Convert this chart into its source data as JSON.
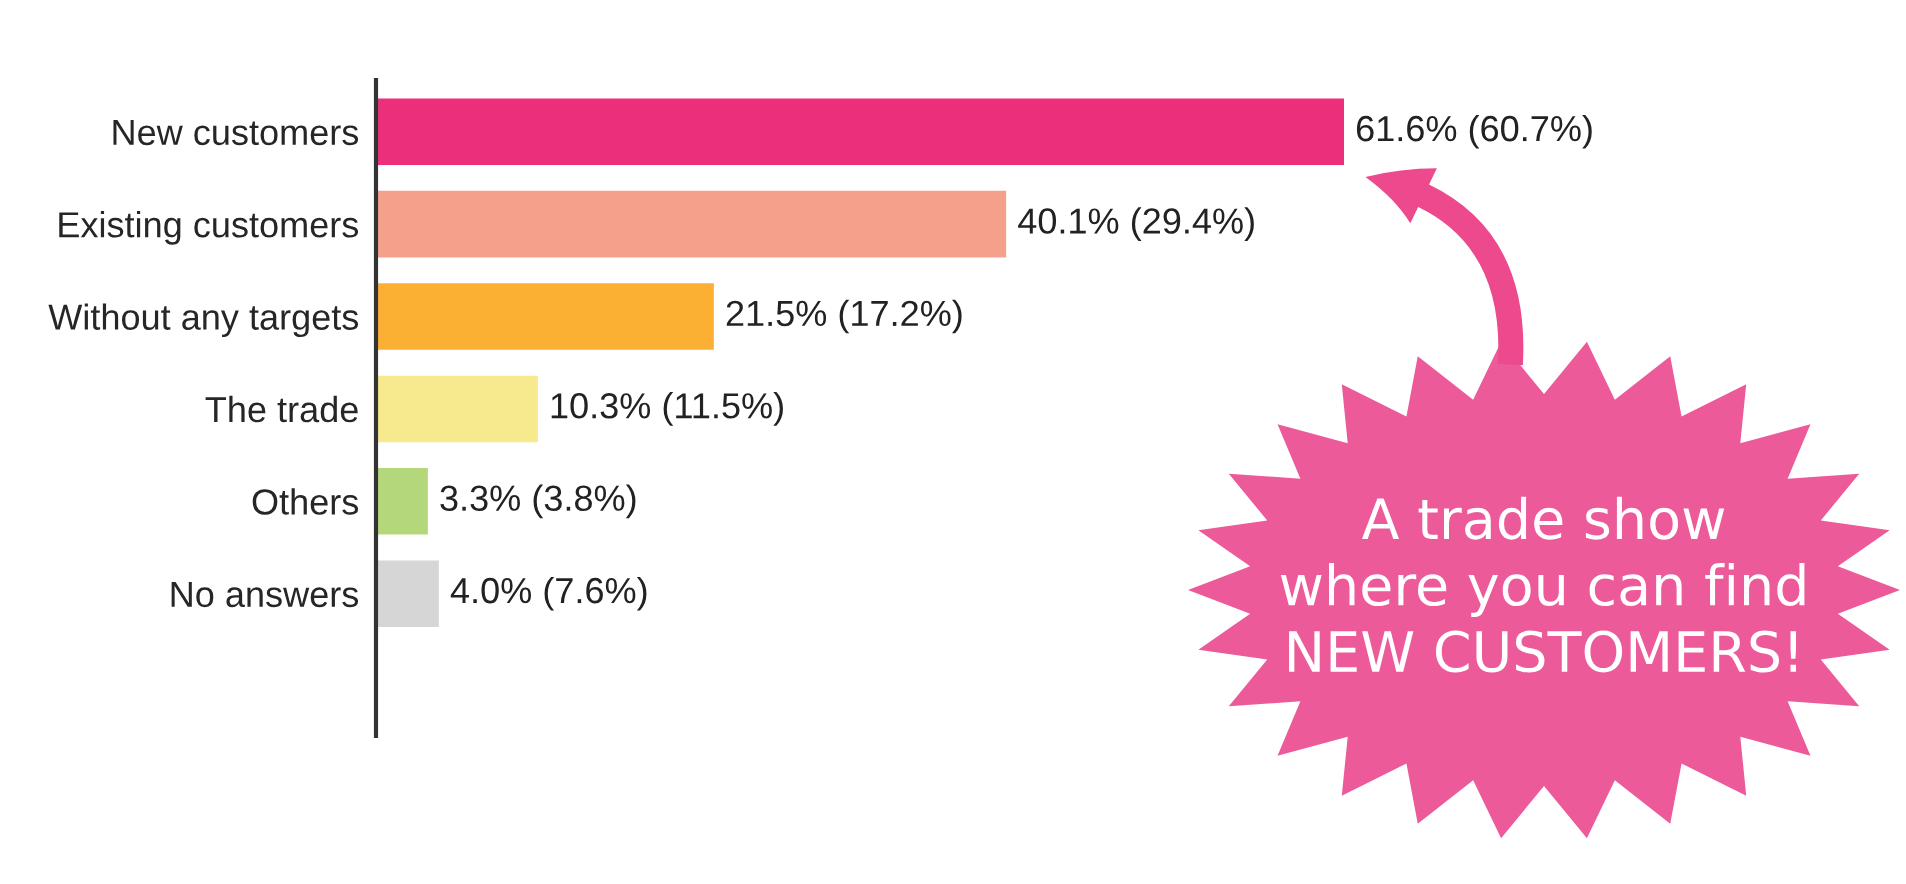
{
  "chart_data": {
    "type": "bar",
    "orientation": "horizontal",
    "categories": [
      "New customers",
      "Existing customers",
      "Without any targets",
      "The trade",
      "Others",
      "No answers"
    ],
    "values": [
      61.6,
      40.1,
      21.5,
      10.3,
      3.3,
      4.0
    ],
    "colors": [
      "#ec2f7b",
      "#f5a08a",
      "#fbb034",
      "#f6e98e",
      "#b5d77c",
      "#d6d6d6"
    ],
    "value_labels": [
      "61.6% (60.7%)",
      "40.1% (29.4%)",
      "21.5% (17.2%)",
      "10.3% (11.5%)",
      "3.3% (3.8%)",
      "4.0% (7.6%)"
    ],
    "tick_labels": "y",
    "grid": false,
    "legend": false,
    "annotations": [
      "A trade show\nwhere you can find\nNEW CUSTOMERS!"
    ]
  }
}
